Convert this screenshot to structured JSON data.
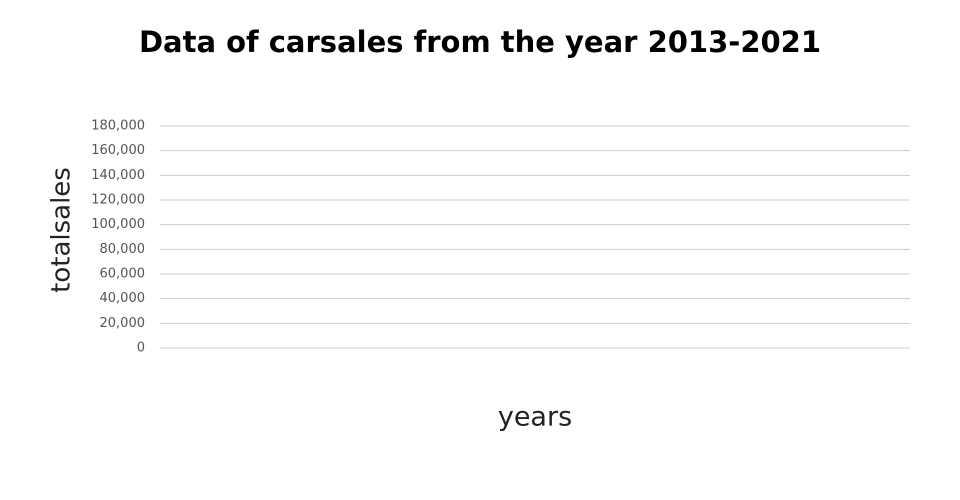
{
  "chart_data": {
    "type": "bar",
    "title": "Data of carsales from the year 2013-2021",
    "x_label": "years",
    "y_label": "totalsales",
    "ylim": [
      0,
      180000
    ],
    "yticks": [
      0,
      {
        "value": 20000,
        "label": "20,000"
      },
      {
        "value": 40000,
        "label": "40,000"
      },
      {
        "value": 60000,
        "label": "60,000"
      },
      {
        "value": 80000,
        "label": "80,000"
      },
      {
        "value": 100000,
        "label": "100,000"
      },
      {
        "value": 120000,
        "label": "120,000"
      },
      {
        "value": 140000,
        "label": "140,000"
      },
      {
        "value": 160000,
        "label": "160,000"
      },
      {
        "value": 180000,
        "label": "180,000"
      }
    ],
    "grid": true,
    "grid_color": "#cccccc"
  }
}
